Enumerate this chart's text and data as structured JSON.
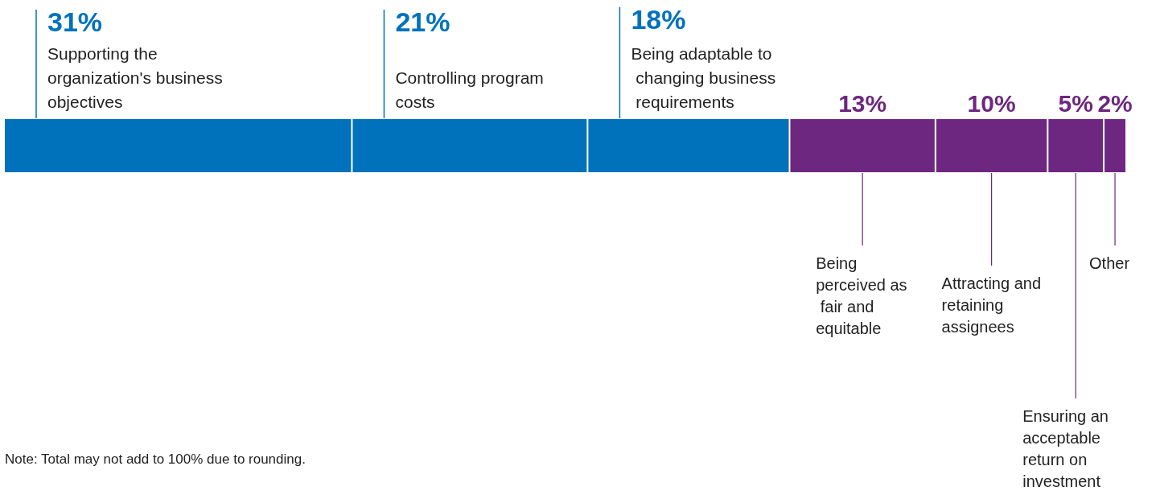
{
  "chart_data": {
    "type": "bar",
    "orientation": "horizontal",
    "stacked": true,
    "categories": [
      null
    ],
    "legend": false,
    "annotations": [
      "Note: Total may not add to 100% due to rounding."
    ],
    "series": [
      {
        "name": "Supporting the organization's business objectives",
        "color": "#0072bb",
        "values": [
          31
        ],
        "value_labels": [
          "31%"
        ]
      },
      {
        "name": "Controlling program costs",
        "color": "#0072bb",
        "values": [
          21
        ],
        "value_labels": [
          "21%"
        ]
      },
      {
        "name": "Being adaptable to changing business requirements",
        "color": "#0072bb",
        "values": [
          18
        ],
        "value_labels": [
          "18%"
        ]
      },
      {
        "name": "Being perceived as fair and equitable",
        "color": "#6d2780",
        "values": [
          13
        ],
        "value_labels": [
          "13%"
        ]
      },
      {
        "name": "Attracting and retaining assignees",
        "color": "#6d2780",
        "values": [
          10
        ],
        "value_labels": [
          "10%"
        ]
      },
      {
        "name": "Ensuring an acceptable return on investment",
        "color": "#6d2780",
        "values": [
          5
        ],
        "value_labels": [
          "5%"
        ]
      },
      {
        "name": "Other",
        "color": "#6d2780",
        "values": [
          2
        ],
        "value_labels": [
          "2%"
        ]
      }
    ]
  }
}
